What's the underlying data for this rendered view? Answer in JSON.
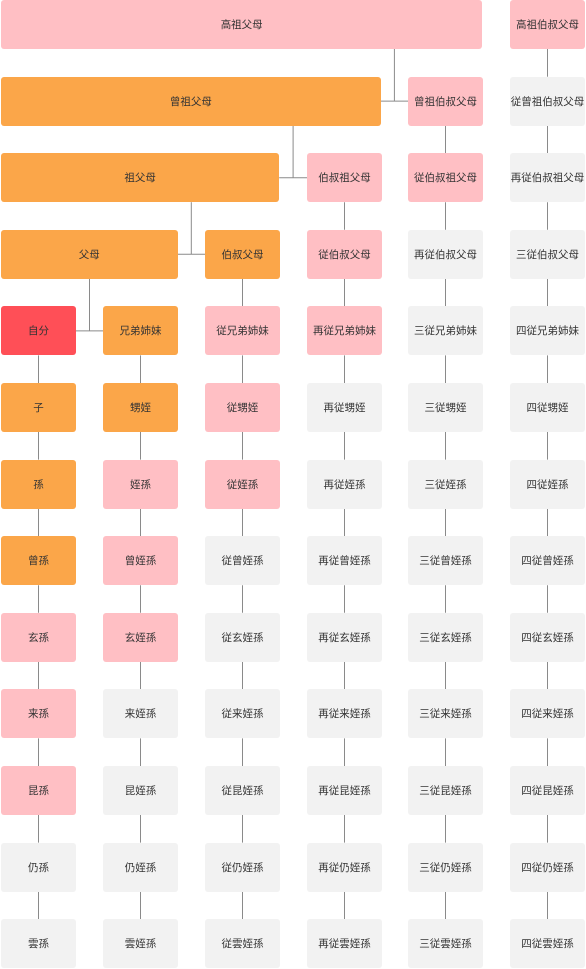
{
  "palette": {
    "t0": "#f2f2f2",
    "t1": "#ffbfc4",
    "t2": "#fba649",
    "t3": "#ff4f57",
    "line": "#8a8a8a"
  },
  "nodes": [
    {
      "id": "gaozu",
      "label": "高祖父母",
      "tone": "t1",
      "row": 0,
      "col": 0,
      "span": 5
    },
    {
      "id": "gaozu-bs",
      "label": "高祖伯叔父母",
      "tone": "t1",
      "row": 0,
      "col": 5,
      "span": 1
    },
    {
      "id": "zengzu",
      "label": "曾祖父母",
      "tone": "t2",
      "row": 1,
      "col": 0,
      "span": 4
    },
    {
      "id": "zengzu-bs",
      "label": "曾祖伯叔父母",
      "tone": "t1",
      "row": 1,
      "col": 4,
      "span": 1
    },
    {
      "id": "c-zengzu-bs",
      "label": "従曾祖伯叔父母",
      "tone": "t0",
      "row": 1,
      "col": 5,
      "span": 1
    },
    {
      "id": "zu",
      "label": "祖父母",
      "tone": "t2",
      "row": 2,
      "col": 0,
      "span": 3
    },
    {
      "id": "bs-zu",
      "label": "伯叔祖父母",
      "tone": "t1",
      "row": 2,
      "col": 3,
      "span": 1
    },
    {
      "id": "c-bs-zu",
      "label": "従伯叔祖父母",
      "tone": "t1",
      "row": 2,
      "col": 4,
      "span": 1
    },
    {
      "id": "z-bs-zu",
      "label": "再従伯叔祖父母",
      "tone": "t0",
      "row": 2,
      "col": 5,
      "span": 1
    },
    {
      "id": "fumu",
      "label": "父母",
      "tone": "t2",
      "row": 3,
      "col": 0,
      "span": 2
    },
    {
      "id": "bs",
      "label": "伯叔父母",
      "tone": "t2",
      "row": 3,
      "col": 2,
      "span": 1
    },
    {
      "id": "c-bs",
      "label": "従伯叔父母",
      "tone": "t1",
      "row": 3,
      "col": 3,
      "span": 1
    },
    {
      "id": "z-bs",
      "label": "再従伯叔父母",
      "tone": "t0",
      "row": 3,
      "col": 4,
      "span": 1
    },
    {
      "id": "s-bs",
      "label": "三従伯叔父母",
      "tone": "t0",
      "row": 3,
      "col": 5,
      "span": 1
    },
    {
      "id": "self",
      "label": "自分",
      "tone": "t3",
      "row": 4,
      "col": 0,
      "span": 1
    },
    {
      "id": "xd",
      "label": "兄弟姉妹",
      "tone": "t2",
      "row": 4,
      "col": 1,
      "span": 1
    },
    {
      "id": "c-xd",
      "label": "従兄弟姉妹",
      "tone": "t1",
      "row": 4,
      "col": 2,
      "span": 1
    },
    {
      "id": "z-xd",
      "label": "再従兄弟姉妹",
      "tone": "t1",
      "row": 4,
      "col": 3,
      "span": 1
    },
    {
      "id": "s-xd",
      "label": "三従兄弟姉妹",
      "tone": "t0",
      "row": 4,
      "col": 4,
      "span": 1
    },
    {
      "id": "y-xd",
      "label": "四従兄弟姉妹",
      "tone": "t0",
      "row": 4,
      "col": 5,
      "span": 1
    },
    {
      "id": "zi",
      "label": "子",
      "tone": "t2",
      "row": 5,
      "col": 0,
      "span": 1
    },
    {
      "id": "sy",
      "label": "甥姪",
      "tone": "t2",
      "row": 5,
      "col": 1,
      "span": 1
    },
    {
      "id": "c-sy",
      "label": "従甥姪",
      "tone": "t1",
      "row": 5,
      "col": 2,
      "span": 1
    },
    {
      "id": "z-sy",
      "label": "再従甥姪",
      "tone": "t0",
      "row": 5,
      "col": 3,
      "span": 1
    },
    {
      "id": "s-sy",
      "label": "三従甥姪",
      "tone": "t0",
      "row": 5,
      "col": 4,
      "span": 1
    },
    {
      "id": "y-sy",
      "label": "四従甥姪",
      "tone": "t0",
      "row": 5,
      "col": 5,
      "span": 1
    },
    {
      "id": "sun",
      "label": "孫",
      "tone": "t2",
      "row": 6,
      "col": 0,
      "span": 1
    },
    {
      "id": "ys",
      "label": "姪孫",
      "tone": "t1",
      "row": 6,
      "col": 1,
      "span": 1
    },
    {
      "id": "c-ys",
      "label": "従姪孫",
      "tone": "t1",
      "row": 6,
      "col": 2,
      "span": 1
    },
    {
      "id": "z-ys",
      "label": "再従姪孫",
      "tone": "t0",
      "row": 6,
      "col": 3,
      "span": 1
    },
    {
      "id": "s-ys",
      "label": "三従姪孫",
      "tone": "t0",
      "row": 6,
      "col": 4,
      "span": 1
    },
    {
      "id": "y-ys",
      "label": "四従姪孫",
      "tone": "t0",
      "row": 6,
      "col": 5,
      "span": 1
    },
    {
      "id": "zengsun",
      "label": "曾孫",
      "tone": "t2",
      "row": 7,
      "col": 0,
      "span": 1
    },
    {
      "id": "zys",
      "label": "曾姪孫",
      "tone": "t1",
      "row": 7,
      "col": 1,
      "span": 1
    },
    {
      "id": "c-zys",
      "label": "従曾姪孫",
      "tone": "t0",
      "row": 7,
      "col": 2,
      "span": 1
    },
    {
      "id": "z-zys",
      "label": "再従曾姪孫",
      "tone": "t0",
      "row": 7,
      "col": 3,
      "span": 1
    },
    {
      "id": "s-zys",
      "label": "三従曾姪孫",
      "tone": "t0",
      "row": 7,
      "col": 4,
      "span": 1
    },
    {
      "id": "y-zys",
      "label": "四従曾姪孫",
      "tone": "t0",
      "row": 7,
      "col": 5,
      "span": 1
    },
    {
      "id": "xuansun",
      "label": "玄孫",
      "tone": "t1",
      "row": 8,
      "col": 0,
      "span": 1
    },
    {
      "id": "xys",
      "label": "玄姪孫",
      "tone": "t1",
      "row": 8,
      "col": 1,
      "span": 1
    },
    {
      "id": "c-xys",
      "label": "従玄姪孫",
      "tone": "t0",
      "row": 8,
      "col": 2,
      "span": 1
    },
    {
      "id": "z-xys",
      "label": "再従玄姪孫",
      "tone": "t0",
      "row": 8,
      "col": 3,
      "span": 1
    },
    {
      "id": "s-xys",
      "label": "三従玄姪孫",
      "tone": "t0",
      "row": 8,
      "col": 4,
      "span": 1
    },
    {
      "id": "y-xys",
      "label": "四従玄姪孫",
      "tone": "t0",
      "row": 8,
      "col": 5,
      "span": 1
    },
    {
      "id": "laisun",
      "label": "来孫",
      "tone": "t1",
      "row": 9,
      "col": 0,
      "span": 1
    },
    {
      "id": "lys",
      "label": "来姪孫",
      "tone": "t0",
      "row": 9,
      "col": 1,
      "span": 1
    },
    {
      "id": "c-lys",
      "label": "従来姪孫",
      "tone": "t0",
      "row": 9,
      "col": 2,
      "span": 1
    },
    {
      "id": "z-lys",
      "label": "再従来姪孫",
      "tone": "t0",
      "row": 9,
      "col": 3,
      "span": 1
    },
    {
      "id": "s-lys",
      "label": "三従来姪孫",
      "tone": "t0",
      "row": 9,
      "col": 4,
      "span": 1
    },
    {
      "id": "y-lys",
      "label": "四従来姪孫",
      "tone": "t0",
      "row": 9,
      "col": 5,
      "span": 1
    },
    {
      "id": "kunsun",
      "label": "昆孫",
      "tone": "t1",
      "row": 10,
      "col": 0,
      "span": 1
    },
    {
      "id": "kys",
      "label": "昆姪孫",
      "tone": "t0",
      "row": 10,
      "col": 1,
      "span": 1
    },
    {
      "id": "c-kys",
      "label": "従昆姪孫",
      "tone": "t0",
      "row": 10,
      "col": 2,
      "span": 1
    },
    {
      "id": "z-kys",
      "label": "再従昆姪孫",
      "tone": "t0",
      "row": 10,
      "col": 3,
      "span": 1
    },
    {
      "id": "s-kys",
      "label": "三従昆姪孫",
      "tone": "t0",
      "row": 10,
      "col": 4,
      "span": 1
    },
    {
      "id": "y-kys",
      "label": "四従昆姪孫",
      "tone": "t0",
      "row": 10,
      "col": 5,
      "span": 1
    },
    {
      "id": "rengsun",
      "label": "仍孫",
      "tone": "t0",
      "row": 11,
      "col": 0,
      "span": 1
    },
    {
      "id": "rys",
      "label": "仍姪孫",
      "tone": "t0",
      "row": 11,
      "col": 1,
      "span": 1
    },
    {
      "id": "c-rys",
      "label": "従仍姪孫",
      "tone": "t0",
      "row": 11,
      "col": 2,
      "span": 1
    },
    {
      "id": "z-rys",
      "label": "再従仍姪孫",
      "tone": "t0",
      "row": 11,
      "col": 3,
      "span": 1
    },
    {
      "id": "s-rys",
      "label": "三従仍姪孫",
      "tone": "t0",
      "row": 11,
      "col": 4,
      "span": 1
    },
    {
      "id": "y-rys",
      "label": "四従仍姪孫",
      "tone": "t0",
      "row": 11,
      "col": 5,
      "span": 1
    },
    {
      "id": "yunsun",
      "label": "雲孫",
      "tone": "t0",
      "row": 12,
      "col": 0,
      "span": 1
    },
    {
      "id": "uys",
      "label": "雲姪孫",
      "tone": "t0",
      "row": 12,
      "col": 1,
      "span": 1
    },
    {
      "id": "c-uys",
      "label": "従雲姪孫",
      "tone": "t0",
      "row": 12,
      "col": 2,
      "span": 1
    },
    {
      "id": "z-uys",
      "label": "再従雲姪孫",
      "tone": "t0",
      "row": 12,
      "col": 3,
      "span": 1
    },
    {
      "id": "s-uys",
      "label": "三従雲姪孫",
      "tone": "t0",
      "row": 12,
      "col": 4,
      "span": 1
    },
    {
      "id": "y-uys",
      "label": "四従雲姪孫",
      "tone": "t0",
      "row": 12,
      "col": 5,
      "span": 1
    }
  ]
}
